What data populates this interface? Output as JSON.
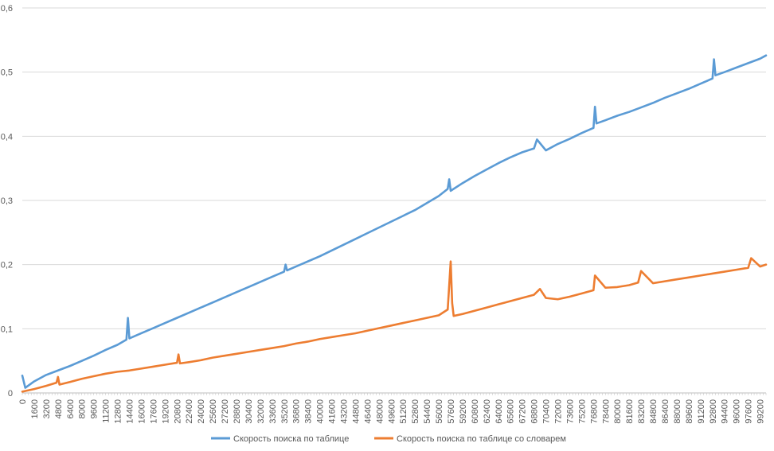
{
  "chart_data": {
    "type": "line",
    "title": "",
    "xlabel": "",
    "ylabel": "",
    "ylim": [
      0,
      0.6
    ],
    "y_ticks": [
      "0",
      "0,1",
      "0,2",
      "0,3",
      "0,4",
      "0,5",
      "0,6"
    ],
    "x_range": [
      0,
      100000
    ],
    "x_step": 400,
    "x_tick_step": 1600,
    "x_ticks": [
      "0",
      "1600",
      "3200",
      "4800",
      "6400",
      "8000",
      "9600",
      "11200",
      "12800",
      "14400",
      "16000",
      "17600",
      "19200",
      "20800",
      "22400",
      "24000",
      "25600",
      "27200",
      "28800",
      "30400",
      "32000",
      "33600",
      "35200",
      "36800",
      "38400",
      "40000",
      "41600",
      "43200",
      "44800",
      "46400",
      "48000",
      "49600",
      "51200",
      "52800",
      "54400",
      "56000",
      "57600",
      "59200",
      "60800",
      "62400",
      "64000",
      "65600",
      "67200",
      "68800",
      "70400",
      "72000",
      "73600",
      "75200",
      "76800",
      "78400",
      "80000",
      "81600",
      "83200",
      "84800",
      "86400",
      "88000",
      "89600",
      "91200",
      "92800",
      "94400",
      "96000",
      "97600",
      "99200"
    ],
    "grid": true,
    "legend_position": "bottom",
    "series": [
      {
        "name": "Скорость поиска по таблице",
        "color": "#5B9BD5",
        "x": [
          0,
          400,
          1600,
          3200,
          4800,
          6400,
          8000,
          9600,
          11200,
          12800,
          14000,
          14200,
          14400,
          16000,
          17600,
          19200,
          20800,
          22400,
          24000,
          25600,
          27200,
          28800,
          30400,
          32000,
          33600,
          35200,
          35400,
          35600,
          36800,
          38400,
          40000,
          41600,
          43200,
          44800,
          46400,
          48000,
          49600,
          51200,
          52800,
          54400,
          56000,
          57200,
          57400,
          57600,
          59200,
          60800,
          62400,
          64000,
          65600,
          67200,
          68800,
          69200,
          70400,
          72000,
          73600,
          75200,
          76800,
          77000,
          77200,
          78400,
          80000,
          81600,
          83200,
          84800,
          86400,
          88000,
          89600,
          91200,
          92800,
          93000,
          93200,
          94400,
          96000,
          97600,
          99200,
          100000
        ],
        "y": [
          0.027,
          0.008,
          0.018,
          0.028,
          0.035,
          0.042,
          0.05,
          0.058,
          0.067,
          0.075,
          0.083,
          0.117,
          0.085,
          0.093,
          0.101,
          0.109,
          0.117,
          0.125,
          0.133,
          0.141,
          0.149,
          0.157,
          0.165,
          0.173,
          0.181,
          0.189,
          0.2,
          0.191,
          0.197,
          0.205,
          0.213,
          0.222,
          0.231,
          0.24,
          0.249,
          0.258,
          0.267,
          0.276,
          0.285,
          0.296,
          0.307,
          0.318,
          0.333,
          0.315,
          0.327,
          0.338,
          0.348,
          0.358,
          0.367,
          0.375,
          0.381,
          0.395,
          0.378,
          0.388,
          0.396,
          0.405,
          0.413,
          0.446,
          0.42,
          0.425,
          0.432,
          0.438,
          0.445,
          0.452,
          0.46,
          0.467,
          0.474,
          0.482,
          0.49,
          0.52,
          0.495,
          0.5,
          0.507,
          0.514,
          0.521,
          0.526
        ]
      },
      {
        "name": "Скорость поиска по таблице со словарем",
        "color": "#ED7D31",
        "x": [
          0,
          1600,
          3200,
          4600,
          4800,
          5000,
          6400,
          8000,
          9600,
          11200,
          12800,
          14400,
          16000,
          17600,
          19200,
          20800,
          21000,
          21200,
          22400,
          24000,
          25600,
          27200,
          28800,
          30400,
          32000,
          33600,
          35200,
          36800,
          38400,
          40000,
          41600,
          43200,
          44800,
          46400,
          48000,
          49600,
          51200,
          52800,
          54400,
          56000,
          57200,
          57600,
          57800,
          58000,
          59200,
          60800,
          62400,
          64000,
          65600,
          67200,
          68800,
          69600,
          70400,
          72000,
          73600,
          75200,
          76800,
          77000,
          78400,
          80000,
          81600,
          82800,
          83200,
          84800,
          86400,
          88000,
          89600,
          91200,
          92800,
          94400,
          96000,
          97600,
          98000,
          99200,
          100000
        ],
        "y": [
          0.002,
          0.006,
          0.011,
          0.016,
          0.025,
          0.013,
          0.017,
          0.022,
          0.026,
          0.03,
          0.033,
          0.035,
          0.038,
          0.041,
          0.044,
          0.047,
          0.06,
          0.046,
          0.048,
          0.051,
          0.055,
          0.058,
          0.061,
          0.064,
          0.067,
          0.07,
          0.073,
          0.077,
          0.08,
          0.084,
          0.087,
          0.09,
          0.093,
          0.097,
          0.101,
          0.105,
          0.109,
          0.113,
          0.117,
          0.121,
          0.13,
          0.205,
          0.14,
          0.12,
          0.123,
          0.128,
          0.133,
          0.138,
          0.143,
          0.148,
          0.153,
          0.162,
          0.148,
          0.146,
          0.15,
          0.155,
          0.16,
          0.183,
          0.164,
          0.165,
          0.168,
          0.172,
          0.19,
          0.171,
          0.174,
          0.177,
          0.18,
          0.183,
          0.186,
          0.189,
          0.192,
          0.195,
          0.21,
          0.197,
          0.2
        ]
      }
    ]
  }
}
